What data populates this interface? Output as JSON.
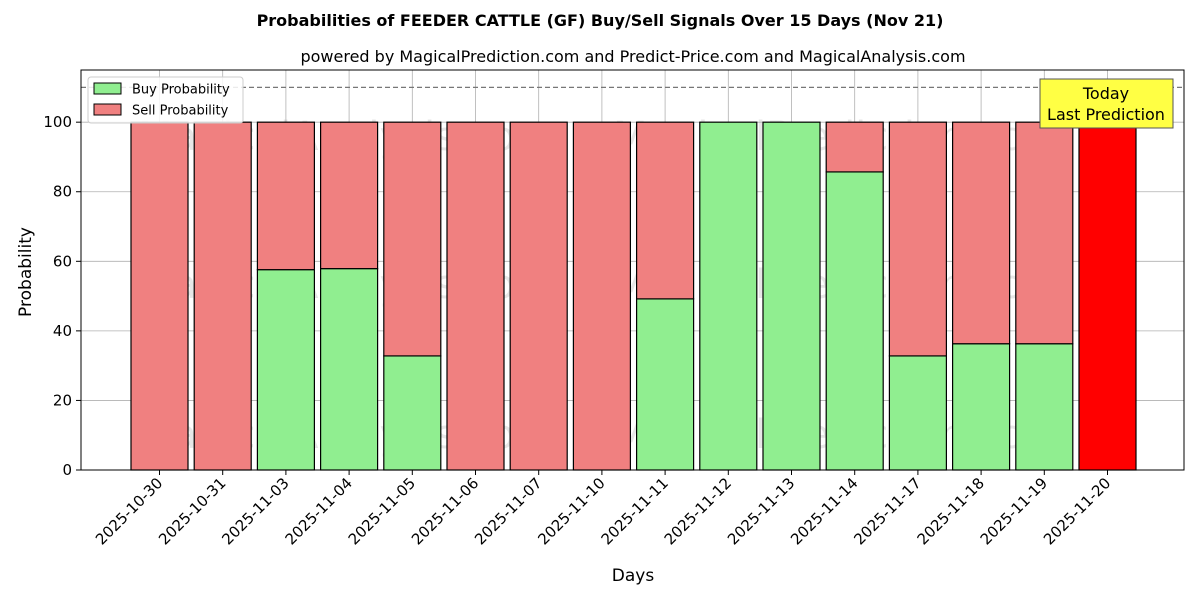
{
  "chart_data": {
    "type": "bar",
    "stacked": true,
    "title": "Probabilities of FEEDER CATTLE (GF) Buy/Sell Signals Over 15 Days (Nov 21)",
    "subtitle": "powered by MagicalPrediction.com and Predict-Price.com and MagicalAnalysis.com",
    "xlabel": "Days",
    "ylabel": "Probability",
    "ylim": [
      0,
      115
    ],
    "yticks": [
      0,
      20,
      40,
      60,
      80,
      100
    ],
    "reference_line": 110,
    "grid": true,
    "legend_position": "top-left",
    "categories": [
      "2025-10-30",
      "2025-10-31",
      "2025-11-03",
      "2025-11-04",
      "2025-11-05",
      "2025-11-06",
      "2025-11-07",
      "2025-11-10",
      "2025-11-11",
      "2025-11-12",
      "2025-11-13",
      "2025-11-14",
      "2025-11-17",
      "2025-11-18",
      "2025-11-19",
      "2025-11-20"
    ],
    "series": [
      {
        "name": "Buy Probability",
        "color": "#90ee90",
        "values": [
          0,
          0,
          57.6,
          57.9,
          32.8,
          0,
          0,
          0,
          49.2,
          100,
          100,
          85.7,
          32.8,
          36.3,
          36.3,
          0
        ]
      },
      {
        "name": "Sell Probability",
        "color": "#f08080",
        "values": [
          100,
          100,
          42.4,
          42.1,
          67.2,
          100,
          100,
          100,
          50.8,
          0,
          0,
          14.3,
          67.2,
          63.7,
          63.7,
          100
        ]
      }
    ],
    "highlight": {
      "category": "2025-11-20",
      "color": "#ff0000"
    },
    "annotation": {
      "lines": [
        "Today",
        "Last Prediction"
      ],
      "background": "#ffff44"
    },
    "watermarks": [
      "MagicalAnalysis.com",
      "MagicalPrediction.com"
    ]
  }
}
